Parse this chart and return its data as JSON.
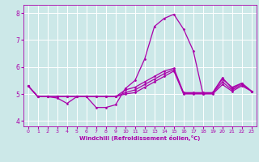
{
  "xlabel": "Windchill (Refroidissement éolien,°C)",
  "xlim": [
    -0.5,
    23.5
  ],
  "ylim": [
    3.8,
    8.3
  ],
  "xticks": [
    0,
    1,
    2,
    3,
    4,
    5,
    6,
    7,
    8,
    9,
    10,
    11,
    12,
    13,
    14,
    15,
    16,
    17,
    18,
    19,
    20,
    21,
    22,
    23
  ],
  "yticks": [
    4,
    5,
    6,
    7,
    8
  ],
  "bg_color": "#cce8e8",
  "line_color": "#aa00aa",
  "grid_color": "#ffffff",
  "curves": [
    {
      "x": [
        0,
        1,
        2,
        3,
        4,
        5,
        6,
        7,
        8,
        9,
        10,
        11,
        12,
        13,
        14,
        15,
        16,
        17,
        18,
        19,
        20,
        21,
        22,
        23
      ],
      "y": [
        5.3,
        4.9,
        4.9,
        4.85,
        4.65,
        4.9,
        4.9,
        4.5,
        4.5,
        4.6,
        5.2,
        5.5,
        6.3,
        7.5,
        7.8,
        7.95,
        7.4,
        6.6,
        5.0,
        5.05,
        5.6,
        5.2,
        5.4,
        5.1
      ]
    },
    {
      "x": [
        0,
        1,
        2,
        3,
        4,
        5,
        6,
        7,
        8,
        9,
        10,
        11,
        12,
        13,
        14,
        15,
        16,
        17,
        18,
        19,
        20,
        21,
        22,
        23
      ],
      "y": [
        5.3,
        4.9,
        4.9,
        4.9,
        4.9,
        4.9,
        4.9,
        4.9,
        4.9,
        4.9,
        5.15,
        5.25,
        5.45,
        5.65,
        5.85,
        5.95,
        5.05,
        5.05,
        5.05,
        5.05,
        5.55,
        5.25,
        5.4,
        5.1
      ]
    },
    {
      "x": [
        0,
        1,
        2,
        3,
        4,
        5,
        6,
        7,
        8,
        9,
        10,
        11,
        12,
        13,
        14,
        15,
        16,
        17,
        18,
        19,
        20,
        21,
        22,
        23
      ],
      "y": [
        5.3,
        4.9,
        4.9,
        4.9,
        4.9,
        4.9,
        4.9,
        4.9,
        4.9,
        4.9,
        5.05,
        5.15,
        5.35,
        5.55,
        5.75,
        5.9,
        5.02,
        5.02,
        5.02,
        5.02,
        5.45,
        5.15,
        5.35,
        5.1
      ]
    },
    {
      "x": [
        0,
        1,
        2,
        3,
        4,
        5,
        6,
        7,
        8,
        9,
        10,
        11,
        12,
        13,
        14,
        15,
        16,
        17,
        18,
        19,
        20,
        21,
        22,
        23
      ],
      "y": [
        5.3,
        4.9,
        4.9,
        4.9,
        4.9,
        4.9,
        4.9,
        4.9,
        4.9,
        4.9,
        5.0,
        5.05,
        5.25,
        5.45,
        5.65,
        5.85,
        5.0,
        5.0,
        5.0,
        5.0,
        5.35,
        5.1,
        5.3,
        5.1
      ]
    }
  ]
}
